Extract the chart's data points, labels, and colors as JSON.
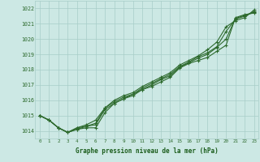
{
  "x": [
    0,
    1,
    2,
    3,
    4,
    5,
    6,
    7,
    8,
    9,
    10,
    11,
    12,
    13,
    14,
    15,
    16,
    17,
    18,
    19,
    20,
    21,
    22,
    23
  ],
  "line1": [
    1015.0,
    1014.7,
    1014.2,
    1013.9,
    1014.1,
    1014.2,
    1014.2,
    1015.2,
    1015.8,
    1016.1,
    1016.3,
    1016.7,
    1016.9,
    1017.2,
    1017.5,
    1018.1,
    1018.4,
    1018.6,
    1018.8,
    1019.2,
    1019.6,
    1021.4,
    1021.6,
    1021.7
  ],
  "line2": [
    1015.0,
    1014.7,
    1014.2,
    1013.9,
    1014.2,
    1014.3,
    1014.5,
    1015.5,
    1015.9,
    1016.2,
    1016.4,
    1016.8,
    1017.1,
    1017.4,
    1017.7,
    1018.2,
    1018.5,
    1018.85,
    1019.1,
    1019.5,
    1020.5,
    1021.3,
    1021.5,
    1021.8
  ],
  "line3": [
    1015.0,
    1014.7,
    1014.2,
    1013.9,
    1014.2,
    1014.4,
    1014.7,
    1015.5,
    1016.0,
    1016.3,
    1016.5,
    1016.9,
    1017.2,
    1017.5,
    1017.8,
    1018.3,
    1018.6,
    1018.9,
    1019.3,
    1019.8,
    1020.8,
    1021.2,
    1021.4,
    1021.9
  ],
  "line4": [
    1015.0,
    1014.7,
    1014.2,
    1013.9,
    1014.1,
    1014.3,
    1014.4,
    1015.4,
    1015.8,
    1016.1,
    1016.4,
    1016.7,
    1017.0,
    1017.35,
    1017.6,
    1018.15,
    1018.45,
    1018.75,
    1019.0,
    1019.45,
    1020.0,
    1021.35,
    1021.55,
    1021.75
  ],
  "line_color": "#2d6a2d",
  "bg_color": "#cce8e4",
  "grid_color": "#a8cdc8",
  "xlabel": "Graphe pression niveau de la mer (hPa)",
  "xlabel_color": "#1a5c1a",
  "ylim": [
    1013.5,
    1022.5
  ],
  "xlim": [
    -0.5,
    23.5
  ],
  "yticks": [
    1014,
    1015,
    1016,
    1017,
    1018,
    1019,
    1020,
    1021,
    1022
  ],
  "xticks": [
    0,
    1,
    2,
    3,
    4,
    5,
    6,
    7,
    8,
    9,
    10,
    11,
    12,
    13,
    14,
    15,
    16,
    17,
    18,
    19,
    20,
    21,
    22,
    23
  ]
}
